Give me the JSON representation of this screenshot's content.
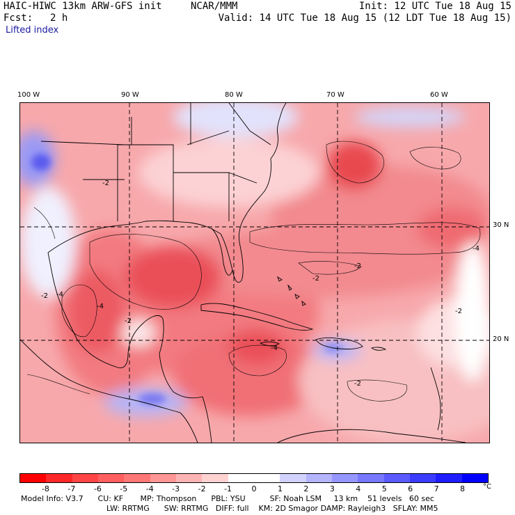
{
  "header": {
    "model": "HAIC-HIWC 13km ARW-GFS init",
    "org": "NCAR/MMM",
    "init": "Init: 12 UTC Tue 18 Aug 15",
    "fcst_label": "Fcst:",
    "fcst_value": "2 h",
    "valid": "Valid: 14 UTC Tue 18 Aug 15 (12 LDT Tue 18 Aug 15)",
    "field": "Lifted index"
  },
  "map": {
    "lon_labels": [
      "100 W",
      "90 W",
      "80 W",
      "70 W",
      "60 W"
    ],
    "lat_labels": [
      "30 N",
      "20 N"
    ],
    "contour_labels": [
      "-2",
      "-2",
      "-4",
      "-2",
      "-4",
      "-2",
      "-2",
      "-4",
      "-2",
      "-4",
      "-2"
    ],
    "colors": {
      "negative": "#e8303a",
      "positive": "#4444ff",
      "neutral": "#ffffff"
    }
  },
  "colorbar": {
    "ticks": [
      "-8",
      "-7",
      "-6",
      "-5",
      "-4",
      "-3",
      "-2",
      "-1",
      "0",
      "1",
      "2",
      "3",
      "4",
      "5",
      "6",
      "7",
      "8"
    ],
    "unit": "°C",
    "colors": [
      "#ff0000",
      "#ff2828",
      "#ff4646",
      "#ff5f5f",
      "#ff7878",
      "#ff9696",
      "#ffb4b4",
      "#ffd2d2",
      "#ffffff",
      "#ffffff",
      "#d2d2ff",
      "#b4b4ff",
      "#9696ff",
      "#7878ff",
      "#5a5aff",
      "#3c3cff",
      "#1e1eff",
      "#0000ff"
    ]
  },
  "model_info": {
    "line1": "Model Info: V3.7      CU: KF       MP: Thompson      PBL: YSU          SF: Noah LSM     13 km    51 levels   60 sec",
    "line2": "LW: RRTMG      SW: RRTMG   DIFF: full    KM: 2D Smagor DAMP: Rayleigh3   SFLAY: MM5"
  }
}
